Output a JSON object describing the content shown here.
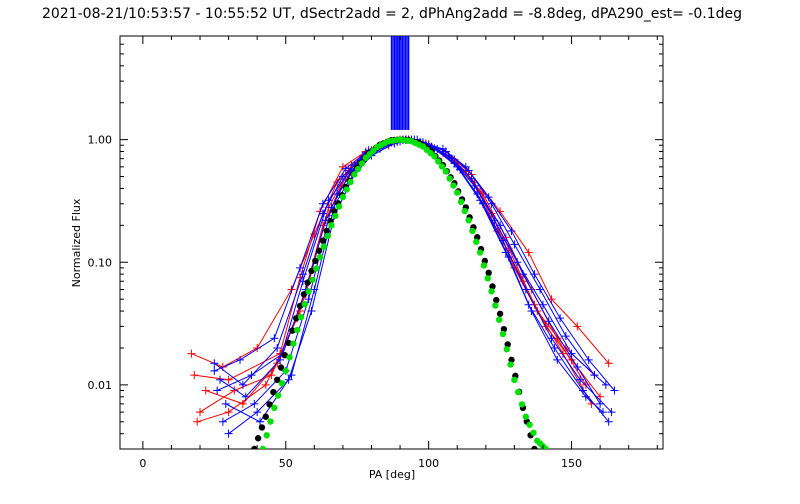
{
  "chart_data": {
    "type": "line",
    "title": "2021-08-21/10:53:57 - 10:55:52 UT, dSectr2add = 2, dPhAng2add = -8.8deg, dPA290_est= -0.1deg",
    "xlabel": "PA [deg]",
    "ylabel": "Normalized Flux",
    "xlim": [
      -8,
      182
    ],
    "ylim": [
      0.003,
      7
    ],
    "y_scale": "log",
    "grid": false,
    "x_ticks": [
      {
        "value": 0,
        "label": "0"
      },
      {
        "value": 50,
        "label": "50"
      },
      {
        "value": 100,
        "label": "100"
      },
      {
        "value": 150,
        "label": "150"
      }
    ],
    "y_ticks": [
      {
        "value": 0.01,
        "label": "0.01"
      },
      {
        "value": 0.1,
        "label": "0.10"
      },
      {
        "value": 1.0,
        "label": "1.00"
      }
    ],
    "colors": {
      "red": "#ff0000",
      "blue": "#0000ff",
      "black": "#000000",
      "green": "#00e000"
    },
    "series": [
      {
        "color": "red",
        "style": "line-marker",
        "x": [
          18,
          30,
          48,
          55,
          62,
          70,
          78,
          85,
          90,
          97,
          105,
          113,
          122,
          130,
          138,
          148,
          158
        ],
        "y": [
          0.012,
          0.011,
          0.018,
          0.075,
          0.26,
          0.6,
          0.8,
          0.93,
          1.0,
          0.93,
          0.78,
          0.55,
          0.25,
          0.09,
          0.04,
          0.02,
          0.012
        ]
      },
      {
        "color": "red",
        "style": "line-marker",
        "x": [
          20,
          32,
          45,
          55,
          63,
          72,
          80,
          88,
          92,
          100,
          108,
          116,
          124,
          133,
          141,
          150,
          160
        ],
        "y": [
          0.006,
          0.009,
          0.012,
          0.04,
          0.2,
          0.56,
          0.82,
          0.96,
          1.0,
          0.9,
          0.7,
          0.45,
          0.18,
          0.07,
          0.03,
          0.016,
          0.008
        ]
      },
      {
        "color": "red",
        "style": "line-marker",
        "x": [
          17,
          28,
          40,
          52,
          60,
          68,
          77,
          86,
          91,
          98,
          106,
          115,
          125,
          135,
          143,
          152,
          163
        ],
        "y": [
          0.018,
          0.014,
          0.02,
          0.06,
          0.17,
          0.45,
          0.74,
          0.9,
          1.0,
          0.95,
          0.8,
          0.52,
          0.26,
          0.12,
          0.05,
          0.03,
          0.015
        ]
      },
      {
        "color": "red",
        "style": "line-marker",
        "x": [
          22,
          35,
          47,
          57,
          65,
          73,
          82,
          88,
          93,
          101,
          110,
          119,
          127,
          136,
          145,
          155
        ],
        "y": [
          0.009,
          0.007,
          0.015,
          0.055,
          0.28,
          0.62,
          0.86,
          0.97,
          1.0,
          0.88,
          0.64,
          0.36,
          0.16,
          0.06,
          0.024,
          0.01
        ]
      },
      {
        "color": "red",
        "style": "line-marker",
        "x": [
          19,
          30,
          43,
          54,
          64,
          71,
          79,
          87,
          92,
          100,
          109,
          118,
          128,
          137,
          147,
          157
        ],
        "y": [
          0.005,
          0.006,
          0.01,
          0.035,
          0.22,
          0.5,
          0.78,
          0.95,
          1.0,
          0.92,
          0.69,
          0.38,
          0.13,
          0.045,
          0.018,
          0.007
        ]
      },
      {
        "color": "blue",
        "style": "line-marker",
        "x": [
          25,
          35,
          47,
          56,
          63,
          70,
          78,
          86,
          92,
          99,
          107,
          115,
          123,
          131,
          140,
          150,
          162
        ],
        "y": [
          0.015,
          0.01,
          0.02,
          0.08,
          0.25,
          0.5,
          0.78,
          0.94,
          1.0,
          0.93,
          0.74,
          0.48,
          0.22,
          0.1,
          0.045,
          0.018,
          0.01
        ]
      },
      {
        "color": "blue",
        "style": "line-marker",
        "x": [
          26,
          38,
          49,
          57,
          64,
          72,
          80,
          88,
          93,
          100,
          108,
          116,
          125,
          133,
          142,
          152,
          160
        ],
        "y": [
          0.009,
          0.012,
          0.018,
          0.06,
          0.22,
          0.46,
          0.74,
          0.93,
          1.0,
          0.9,
          0.7,
          0.42,
          0.2,
          0.08,
          0.033,
          0.014,
          0.007
        ]
      },
      {
        "color": "blue",
        "style": "line-marker",
        "x": [
          28,
          39,
          50,
          58,
          66,
          73,
          81,
          89,
          94,
          101,
          109,
          117,
          126,
          134,
          143,
          153,
          164
        ],
        "y": [
          0.005,
          0.007,
          0.013,
          0.05,
          0.28,
          0.56,
          0.82,
          0.96,
          1.0,
          0.87,
          0.64,
          0.36,
          0.15,
          0.06,
          0.024,
          0.011,
          0.006
        ]
      },
      {
        "color": "blue",
        "style": "line-marker",
        "x": [
          27,
          36,
          48,
          56,
          65,
          74,
          82,
          89,
          92,
          98,
          106,
          114,
          122,
          130,
          139,
          148,
          158
        ],
        "y": [
          0.011,
          0.008,
          0.016,
          0.07,
          0.32,
          0.62,
          0.86,
          0.97,
          1.0,
          0.95,
          0.8,
          0.56,
          0.3,
          0.14,
          0.06,
          0.025,
          0.012
        ]
      },
      {
        "color": "blue",
        "style": "line-marker",
        "x": [
          30,
          40,
          51,
          59,
          67,
          75,
          83,
          90,
          95,
          102,
          110,
          118,
          127,
          135,
          144,
          154,
          163
        ],
        "y": [
          0.004,
          0.006,
          0.011,
          0.04,
          0.24,
          0.58,
          0.84,
          0.97,
          1.0,
          0.85,
          0.6,
          0.32,
          0.12,
          0.045,
          0.02,
          0.009,
          0.005
        ]
      },
      {
        "color": "blue",
        "style": "line-marker",
        "x": [
          25,
          34,
          46,
          55,
          63,
          71,
          79,
          87,
          91,
          97,
          105,
          113,
          121,
          129,
          137,
          146,
          156,
          165
        ],
        "y": [
          0.013,
          0.016,
          0.024,
          0.09,
          0.3,
          0.58,
          0.82,
          0.95,
          1.0,
          0.96,
          0.84,
          0.6,
          0.34,
          0.18,
          0.08,
          0.035,
          0.016,
          0.009
        ]
      },
      {
        "color": "blue",
        "style": "line-marker",
        "x": [
          29,
          41,
          52,
          60,
          68,
          76,
          84,
          91,
          96,
          103,
          111,
          119,
          128,
          136,
          145,
          155,
          161
        ],
        "y": [
          0.007,
          0.005,
          0.012,
          0.06,
          0.36,
          0.68,
          0.9,
          0.99,
          1.0,
          0.84,
          0.57,
          0.3,
          0.11,
          0.04,
          0.016,
          0.008,
          0.006
        ]
      },
      {
        "color": "black",
        "style": "dotted-fit",
        "x": [
          39,
          43,
          47,
          51,
          55,
          59,
          63,
          67,
          71,
          75,
          79,
          83,
          87,
          90,
          93,
          97,
          101,
          105,
          109,
          113,
          117,
          121,
          125,
          129,
          133,
          137
        ],
        "y": [
          0.003,
          0.0055,
          0.011,
          0.022,
          0.044,
          0.085,
          0.15,
          0.26,
          0.41,
          0.59,
          0.77,
          0.91,
          0.99,
          1.0,
          0.99,
          0.93,
          0.8,
          0.62,
          0.44,
          0.28,
          0.16,
          0.082,
          0.038,
          0.016,
          0.0065,
          0.003
        ]
      },
      {
        "color": "green",
        "style": "dotted-fit",
        "x": [
          42,
          46,
          50,
          54,
          58,
          62,
          66,
          70,
          74,
          78,
          82,
          86,
          90,
          94,
          98,
          102,
          106,
          110,
          114,
          118,
          122,
          126,
          130,
          134,
          138,
          141
        ],
        "y": [
          0.003,
          0.0065,
          0.013,
          0.028,
          0.058,
          0.11,
          0.2,
          0.34,
          0.52,
          0.71,
          0.87,
          0.97,
          1.0,
          0.97,
          0.88,
          0.73,
          0.55,
          0.37,
          0.22,
          0.12,
          0.058,
          0.026,
          0.011,
          0.0055,
          0.0035,
          0.003
        ]
      }
    ],
    "vertical_bars": {
      "color": "blue",
      "x_from": 87,
      "x_to": 93,
      "y_from": 1.2,
      "y_to": 7,
      "count": 12
    }
  }
}
